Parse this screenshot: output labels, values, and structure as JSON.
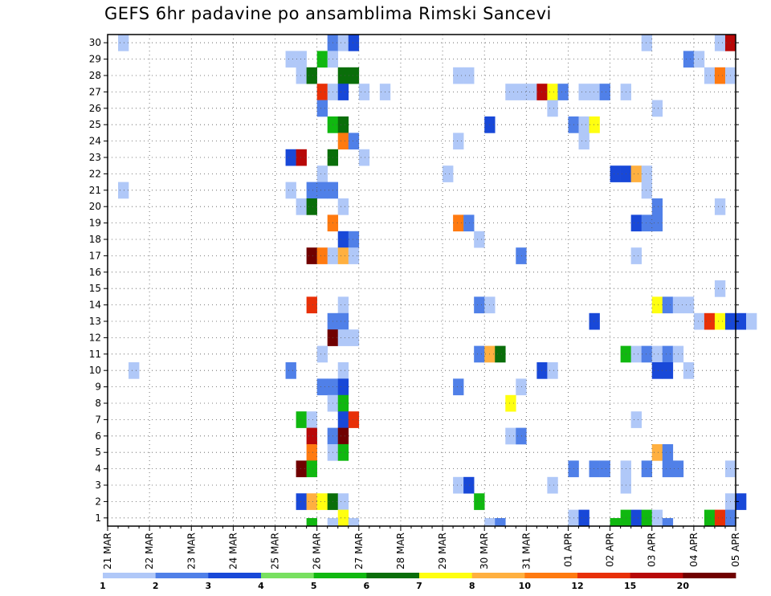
{
  "chart_data": {
    "type": "heatmap",
    "title": "GEFS 6hr padavine po ansamblima Rimski Sancevi",
    "x_ticks": [
      "21 MAR",
      "22 MAR",
      "23 MAR",
      "24 MAR",
      "25 MAR",
      "26 MAR",
      "27 MAR",
      "28 MAR",
      "29 MAR",
      "30 MAR",
      "31 MAR",
      "01 APR",
      "02 APR",
      "03 APR",
      "04 APR",
      "05 APR"
    ],
    "y_ticks": [
      1,
      2,
      3,
      4,
      5,
      6,
      7,
      8,
      9,
      10,
      11,
      12,
      13,
      14,
      15,
      16,
      17,
      18,
      19,
      20,
      21,
      22,
      23,
      24,
      25,
      26,
      27,
      28,
      29,
      30
    ],
    "x_steps_per_day": 4,
    "grid": true,
    "legend": {
      "position": "bottom",
      "labels": [
        "1",
        "2",
        "3",
        "4",
        "5",
        "6",
        "7",
        "8",
        "10",
        "12",
        "15",
        "20"
      ],
      "colors": [
        "#b0c8f8",
        "#5080e8",
        "#1848d8",
        "#78e060",
        "#10b810",
        "#0a6e0a",
        "#ffff10",
        "#ffb040",
        "#ff7a10",
        "#e83008",
        "#b80808",
        "#700000"
      ]
    },
    "cells": [
      {
        "member": 30,
        "step": 1,
        "v": 1
      },
      {
        "member": 30,
        "step": 21,
        "v": 2
      },
      {
        "member": 30,
        "step": 22,
        "v": 1
      },
      {
        "member": 30,
        "step": 23,
        "v": 3
      },
      {
        "member": 30,
        "step": 51,
        "v": 1
      },
      {
        "member": 30,
        "step": 58,
        "v": 1
      },
      {
        "member": 30,
        "step": 59,
        "v": 15
      },
      {
        "member": 29,
        "step": 17,
        "v": 1
      },
      {
        "member": 29,
        "step": 18,
        "v": 1
      },
      {
        "member": 29,
        "step": 20,
        "v": 5
      },
      {
        "member": 29,
        "step": 21,
        "v": 1
      },
      {
        "member": 29,
        "step": 55,
        "v": 2
      },
      {
        "member": 29,
        "step": 56,
        "v": 1
      },
      {
        "member": 28,
        "step": 18,
        "v": 1
      },
      {
        "member": 28,
        "step": 23,
        "v": 6
      },
      {
        "member": 28,
        "step": 19,
        "v": 6
      },
      {
        "member": 28,
        "step": 22,
        "v": 6
      },
      {
        "member": 28,
        "step": 33,
        "v": 1
      },
      {
        "member": 28,
        "step": 34,
        "v": 1
      },
      {
        "member": 28,
        "step": 57,
        "v": 1
      },
      {
        "member": 28,
        "step": 58,
        "v": 10
      },
      {
        "member": 28,
        "step": 59,
        "v": 1
      },
      {
        "member": 27,
        "step": 20,
        "v": 12
      },
      {
        "member": 27,
        "step": 21,
        "v": 1
      },
      {
        "member": 27,
        "step": 22,
        "v": 3
      },
      {
        "member": 27,
        "step": 24,
        "v": 1
      },
      {
        "member": 27,
        "step": 26,
        "v": 1
      },
      {
        "member": 27,
        "step": 38,
        "v": 1
      },
      {
        "member": 27,
        "step": 39,
        "v": 1
      },
      {
        "member": 27,
        "step": 40,
        "v": 1
      },
      {
        "member": 27,
        "step": 41,
        "v": 15
      },
      {
        "member": 27,
        "step": 42,
        "v": 7
      },
      {
        "member": 27,
        "step": 43,
        "v": 2
      },
      {
        "member": 27,
        "step": 45,
        "v": 1
      },
      {
        "member": 27,
        "step": 46,
        "v": 1
      },
      {
        "member": 27,
        "step": 47,
        "v": 2
      },
      {
        "member": 27,
        "step": 49,
        "v": 1
      },
      {
        "member": 26,
        "step": 20,
        "v": 2
      },
      {
        "member": 26,
        "step": 42,
        "v": 1
      },
      {
        "member": 26,
        "step": 52,
        "v": 1
      },
      {
        "member": 25,
        "step": 21,
        "v": 5
      },
      {
        "member": 25,
        "step": 22,
        "v": 6
      },
      {
        "member": 25,
        "step": 36,
        "v": 3
      },
      {
        "member": 25,
        "step": 44,
        "v": 2
      },
      {
        "member": 25,
        "step": 45,
        "v": 1
      },
      {
        "member": 25,
        "step": 46,
        "v": 7
      },
      {
        "member": 24,
        "step": 22,
        "v": 10
      },
      {
        "member": 24,
        "step": 23,
        "v": 2
      },
      {
        "member": 24,
        "step": 45,
        "v": 1
      },
      {
        "member": 24,
        "step": 33,
        "v": 1
      },
      {
        "member": 23,
        "step": 17,
        "v": 3
      },
      {
        "member": 23,
        "step": 18,
        "v": 15
      },
      {
        "member": 23,
        "step": 21,
        "v": 6
      },
      {
        "member": 23,
        "step": 24,
        "v": 1
      },
      {
        "member": 22,
        "step": 20,
        "v": 1
      },
      {
        "member": 22,
        "step": 32,
        "v": 1
      },
      {
        "member": 22,
        "step": 48,
        "v": 3
      },
      {
        "member": 22,
        "step": 49,
        "v": 3
      },
      {
        "member": 22,
        "step": 50,
        "v": 8
      },
      {
        "member": 22,
        "step": 51,
        "v": 1
      },
      {
        "member": 21,
        "step": 1,
        "v": 1
      },
      {
        "member": 21,
        "step": 17,
        "v": 1
      },
      {
        "member": 21,
        "step": 19,
        "v": 2
      },
      {
        "member": 21,
        "step": 20,
        "v": 2
      },
      {
        "member": 21,
        "step": 21,
        "v": 2
      },
      {
        "member": 21,
        "step": 51,
        "v": 1
      },
      {
        "member": 20,
        "step": 18,
        "v": 1
      },
      {
        "member": 20,
        "step": 19,
        "v": 6
      },
      {
        "member": 20,
        "step": 22,
        "v": 1
      },
      {
        "member": 20,
        "step": 52,
        "v": 2
      },
      {
        "member": 20,
        "step": 58,
        "v": 1
      },
      {
        "member": 19,
        "step": 21,
        "v": 10
      },
      {
        "member": 19,
        "step": 33,
        "v": 10
      },
      {
        "member": 19,
        "step": 34,
        "v": 2
      },
      {
        "member": 19,
        "step": 50,
        "v": 3
      },
      {
        "member": 19,
        "step": 51,
        "v": 2
      },
      {
        "member": 19,
        "step": 52,
        "v": 2
      },
      {
        "member": 18,
        "step": 22,
        "v": 3
      },
      {
        "member": 18,
        "step": 23,
        "v": 2
      },
      {
        "member": 18,
        "step": 35,
        "v": 1
      },
      {
        "member": 17,
        "step": 19,
        "v": 20
      },
      {
        "member": 17,
        "step": 20,
        "v": 10
      },
      {
        "member": 17,
        "step": 21,
        "v": 1
      },
      {
        "member": 17,
        "step": 22,
        "v": 8
      },
      {
        "member": 17,
        "step": 23,
        "v": 1
      },
      {
        "member": 17,
        "step": 39,
        "v": 2
      },
      {
        "member": 17,
        "step": 50,
        "v": 1
      },
      {
        "member": 15,
        "step": 58,
        "v": 1
      },
      {
        "member": 14,
        "step": 19,
        "v": 12
      },
      {
        "member": 14,
        "step": 22,
        "v": 1
      },
      {
        "member": 14,
        "step": 35,
        "v": 2
      },
      {
        "member": 14,
        "step": 36,
        "v": 1
      },
      {
        "member": 14,
        "step": 52,
        "v": 7
      },
      {
        "member": 14,
        "step": 53,
        "v": 2
      },
      {
        "member": 14,
        "step": 54,
        "v": 1
      },
      {
        "member": 14,
        "step": 55,
        "v": 1
      },
      {
        "member": 13,
        "step": 21,
        "v": 2
      },
      {
        "member": 13,
        "step": 22,
        "v": 2
      },
      {
        "member": 13,
        "step": 46,
        "v": 3
      },
      {
        "member": 13,
        "step": 56,
        "v": 1
      },
      {
        "member": 13,
        "step": 57,
        "v": 12
      },
      {
        "member": 13,
        "step": 58,
        "v": 7
      },
      {
        "member": 13,
        "step": 59,
        "v": 3
      },
      {
        "member": 13,
        "step": 60,
        "v": 3
      },
      {
        "member": 13,
        "step": 61,
        "v": 1
      },
      {
        "member": 12,
        "step": 21,
        "v": 20
      },
      {
        "member": 12,
        "step": 22,
        "v": 1
      },
      {
        "member": 12,
        "step": 23,
        "v": 1
      },
      {
        "member": 11,
        "step": 20,
        "v": 1
      },
      {
        "member": 11,
        "step": 35,
        "v": 2
      },
      {
        "member": 11,
        "step": 36,
        "v": 8
      },
      {
        "member": 11,
        "step": 37,
        "v": 6
      },
      {
        "member": 11,
        "step": 49,
        "v": 5
      },
      {
        "member": 11,
        "step": 50,
        "v": 1
      },
      {
        "member": 11,
        "step": 51,
        "v": 2
      },
      {
        "member": 11,
        "step": 52,
        "v": 1
      },
      {
        "member": 11,
        "step": 53,
        "v": 2
      },
      {
        "member": 11,
        "step": 54,
        "v": 1
      },
      {
        "member": 10,
        "step": 2,
        "v": 1
      },
      {
        "member": 10,
        "step": 17,
        "v": 2
      },
      {
        "member": 10,
        "step": 22,
        "v": 1
      },
      {
        "member": 10,
        "step": 41,
        "v": 3
      },
      {
        "member": 10,
        "step": 42,
        "v": 1
      },
      {
        "member": 10,
        "step": 52,
        "v": 3
      },
      {
        "member": 10,
        "step": 53,
        "v": 3
      },
      {
        "member": 10,
        "step": 55,
        "v": 1
      },
      {
        "member": 9,
        "step": 20,
        "v": 2
      },
      {
        "member": 9,
        "step": 21,
        "v": 2
      },
      {
        "member": 9,
        "step": 22,
        "v": 3
      },
      {
        "member": 9,
        "step": 33,
        "v": 2
      },
      {
        "member": 9,
        "step": 39,
        "v": 1
      },
      {
        "member": 8,
        "step": 21,
        "v": 1
      },
      {
        "member": 8,
        "step": 22,
        "v": 5
      },
      {
        "member": 8,
        "step": 38,
        "v": 7
      },
      {
        "member": 7,
        "step": 18,
        "v": 5
      },
      {
        "member": 7,
        "step": 19,
        "v": 1
      },
      {
        "member": 7,
        "step": 22,
        "v": 3
      },
      {
        "member": 7,
        "step": 23,
        "v": 12
      },
      {
        "member": 7,
        "step": 50,
        "v": 1
      },
      {
        "member": 6,
        "step": 19,
        "v": 15
      },
      {
        "member": 6,
        "step": 21,
        "v": 2
      },
      {
        "member": 6,
        "step": 22,
        "v": 20
      },
      {
        "member": 6,
        "step": 38,
        "v": 1
      },
      {
        "member": 6,
        "step": 39,
        "v": 2
      },
      {
        "member": 5,
        "step": 19,
        "v": 10
      },
      {
        "member": 5,
        "step": 21,
        "v": 1
      },
      {
        "member": 5,
        "step": 22,
        "v": 5
      },
      {
        "member": 5,
        "step": 52,
        "v": 8
      },
      {
        "member": 5,
        "step": 53,
        "v": 2
      },
      {
        "member": 4,
        "step": 18,
        "v": 20
      },
      {
        "member": 4,
        "step": 19,
        "v": 5
      },
      {
        "member": 4,
        "step": 44,
        "v": 2
      },
      {
        "member": 4,
        "step": 46,
        "v": 2
      },
      {
        "member": 4,
        "step": 47,
        "v": 2
      },
      {
        "member": 4,
        "step": 49,
        "v": 1
      },
      {
        "member": 4,
        "step": 51,
        "v": 2
      },
      {
        "member": 4,
        "step": 53,
        "v": 2
      },
      {
        "member": 4,
        "step": 54,
        "v": 2
      },
      {
        "member": 4,
        "step": 59,
        "v": 1
      },
      {
        "member": 3,
        "step": 33,
        "v": 1
      },
      {
        "member": 3,
        "step": 34,
        "v": 3
      },
      {
        "member": 3,
        "step": 42,
        "v": 1
      },
      {
        "member": 3,
        "step": 49,
        "v": 1
      },
      {
        "member": 2,
        "step": 18,
        "v": 3
      },
      {
        "member": 2,
        "step": 19,
        "v": 8
      },
      {
        "member": 2,
        "step": 20,
        "v": 7
      },
      {
        "member": 2,
        "step": 21,
        "v": 6
      },
      {
        "member": 2,
        "step": 22,
        "v": 1
      },
      {
        "member": 2,
        "step": 35,
        "v": 5
      },
      {
        "member": 2,
        "step": 59,
        "v": 1
      },
      {
        "member": 2,
        "step": 60,
        "v": 3
      },
      {
        "member": 1,
        "step": 22,
        "v": 7
      },
      {
        "member": 1,
        "step": 44,
        "v": 1
      },
      {
        "member": 1,
        "step": 45,
        "v": 3
      },
      {
        "member": 1,
        "step": 49,
        "v": 5
      },
      {
        "member": 1,
        "step": 50,
        "v": 3
      },
      {
        "member": 1,
        "step": 51,
        "v": 5
      },
      {
        "member": 1,
        "step": 52,
        "v": 1
      },
      {
        "member": 1,
        "step": 57,
        "v": 5
      },
      {
        "member": 1,
        "step": 58,
        "v": 12
      },
      {
        "member": 1,
        "step": 59,
        "v": 2
      },
      {
        "member": 0,
        "step": 19,
        "v": 5
      },
      {
        "member": 0,
        "step": 21,
        "v": 1
      },
      {
        "member": 0,
        "step": 23,
        "v": 1
      },
      {
        "member": 0,
        "step": 36,
        "v": 1
      },
      {
        "member": 0,
        "step": 37,
        "v": 2
      },
      {
        "member": 0,
        "step": 48,
        "v": 5
      },
      {
        "member": 0,
        "step": 53,
        "v": 2
      }
    ]
  }
}
